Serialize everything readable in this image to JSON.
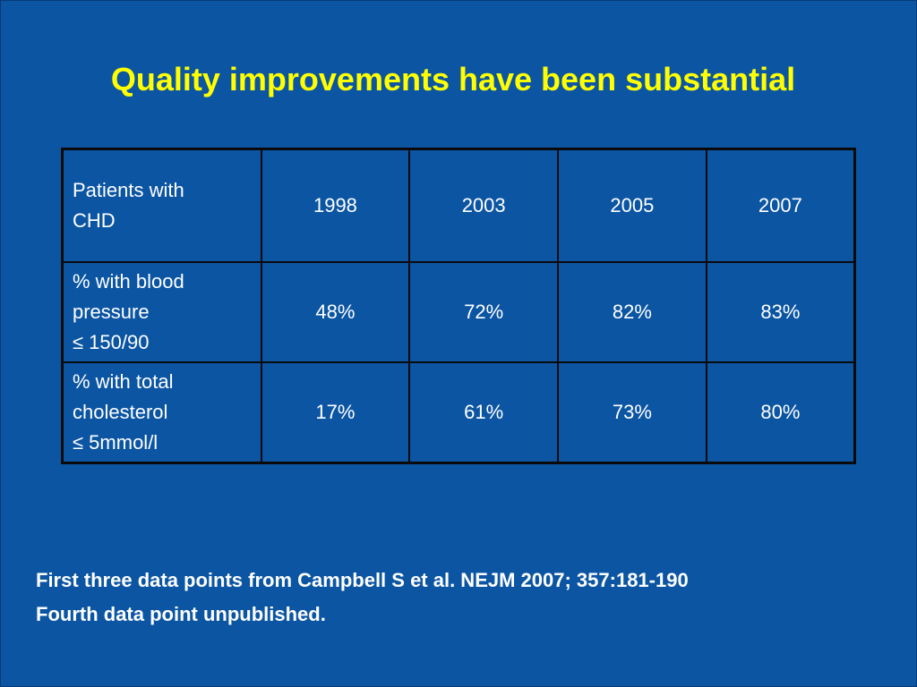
{
  "slide": {
    "title": "Quality improvements have been substantial",
    "table": {
      "header": {
        "label_line1": "Patients with",
        "label_line2": "CHD",
        "years": [
          "1998",
          "2003",
          "2005",
          "2007"
        ]
      },
      "rows": [
        {
          "label_line1": "% with blood",
          "label_line2": "pressure",
          "label_line3": "≤ 150/90",
          "values": [
            "48%",
            "72%",
            "82%",
            "83%"
          ]
        },
        {
          "label_line1": "% with total",
          "label_line2": "cholesterol",
          "label_line3": "≤ 5mmol/l",
          "values": [
            "17%",
            "61%",
            "73%",
            "80%"
          ]
        }
      ]
    },
    "footnote": {
      "line1": "First three data points from Campbell S et al. NEJM 2007; 357:181-190",
      "line2": "Fourth data point unpublished."
    }
  },
  "colors": {
    "background": "#0b55a3",
    "title": "#ffff00",
    "text": "#ffffff",
    "table_border": "#0a0a0a"
  }
}
